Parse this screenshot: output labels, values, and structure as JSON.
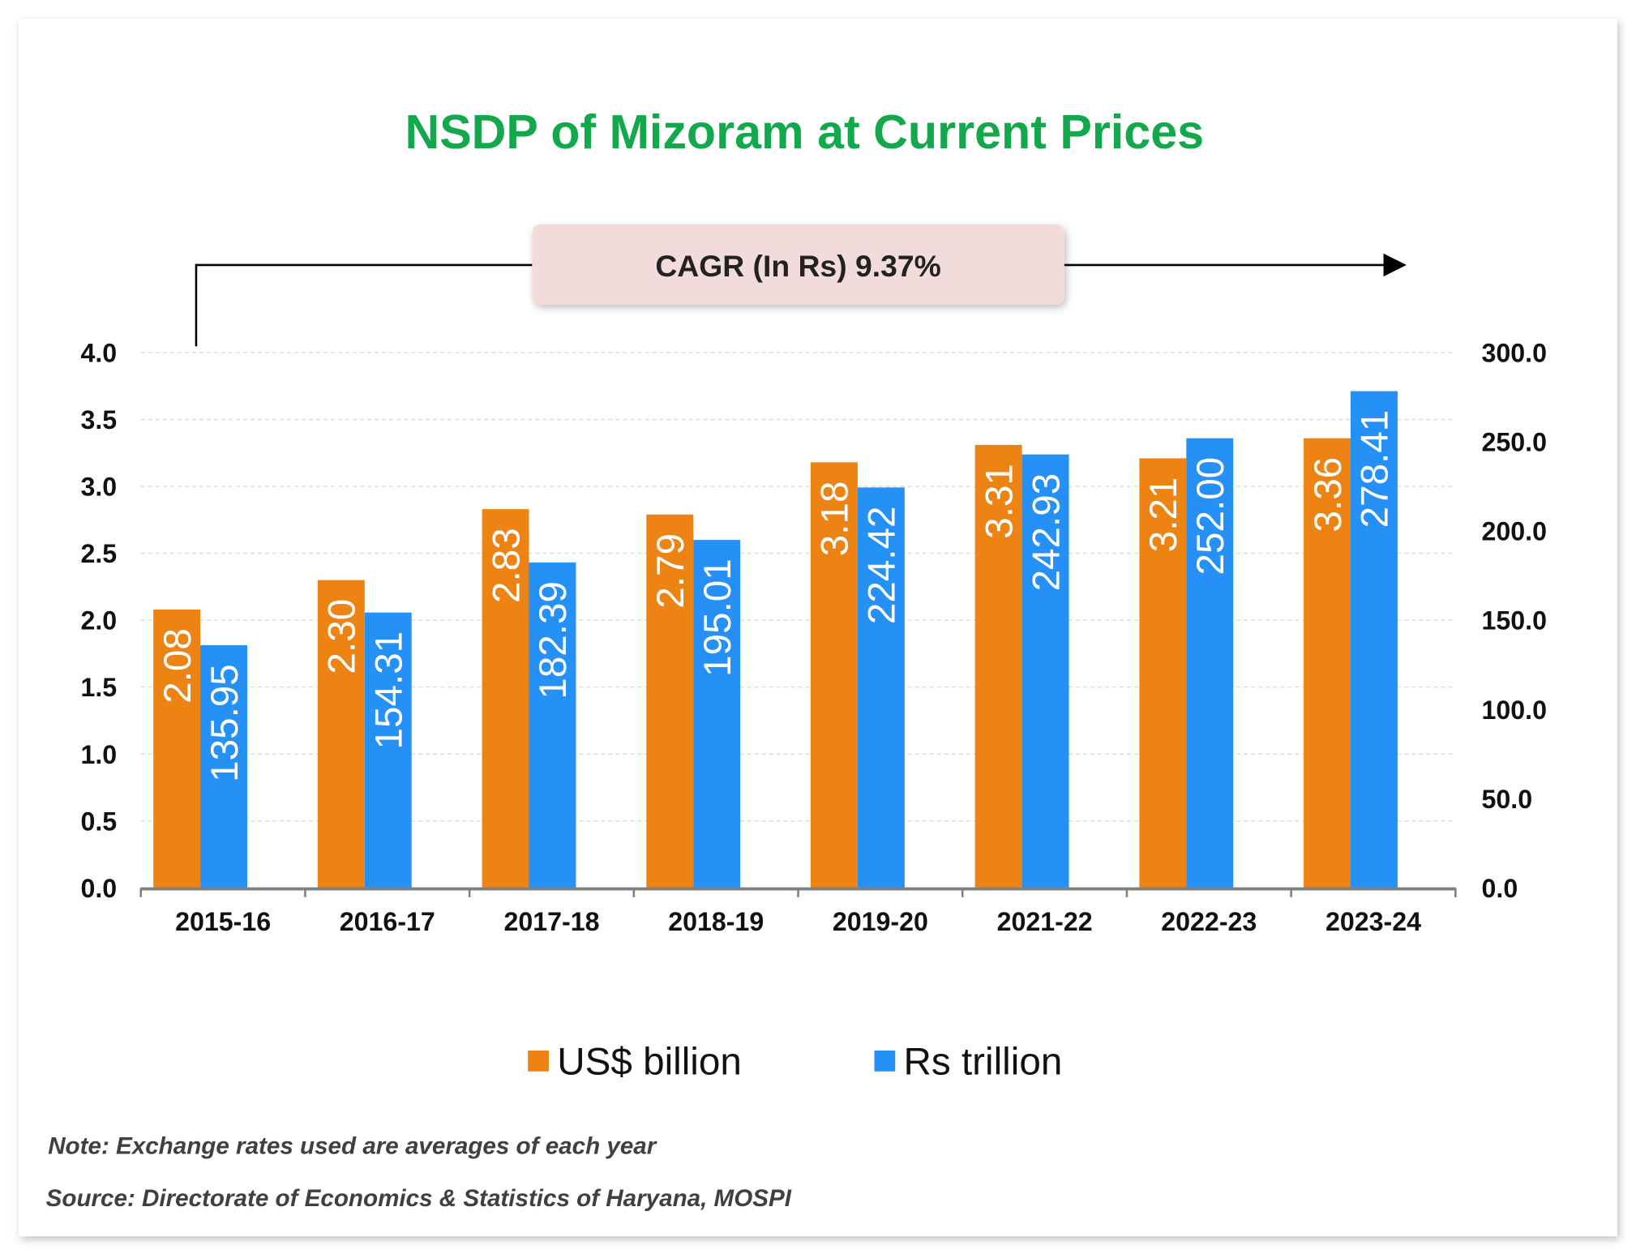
{
  "chart_data": {
    "type": "bar",
    "title": "NSDP of Mizoram at Current Prices",
    "annotation": "CAGR (In Rs) 9.37%",
    "categories": [
      "2015-16",
      "2016-17",
      "2017-18",
      "2018-19",
      "2019-20",
      "2021-22",
      "2022-23",
      "2023-24"
    ],
    "series": [
      {
        "name": "US$ billion",
        "axis": "left",
        "color": "#EC8313",
        "values": [
          2.08,
          2.3,
          2.83,
          2.79,
          3.18,
          3.31,
          3.21,
          3.36
        ],
        "labels": [
          "2.08",
          "2.30",
          "2.83",
          "2.79",
          "3.18",
          "3.31",
          "3.21",
          "3.36"
        ]
      },
      {
        "name": "Rs trillion",
        "axis": "right",
        "color": "#2590F5",
        "values": [
          135.95,
          154.31,
          182.39,
          195.01,
          224.42,
          242.93,
          252.0,
          278.41
        ],
        "labels": [
          "135.95",
          "154.31",
          "182.39",
          "195.01",
          "224.42",
          "242.93",
          "252.00",
          "278.41"
        ]
      }
    ],
    "y_left": {
      "ylim": [
        0,
        4.0
      ],
      "ticks": [
        "0.0",
        "0.5",
        "1.0",
        "1.5",
        "2.0",
        "2.5",
        "3.0",
        "3.5",
        "4.0"
      ]
    },
    "y_right": {
      "ylim": [
        0,
        300
      ],
      "ticks": [
        "0.0",
        "50.0",
        "100.0",
        "150.0",
        "200.0",
        "250.0",
        "300.0"
      ]
    },
    "grid": true,
    "legend": "bottom",
    "title_color": "#12A84B"
  },
  "footer": {
    "note": "Note: Exchange rates used are averages of each year",
    "source": "Source: Directorate of Economics & Statistics of Haryana, MOSPI"
  }
}
